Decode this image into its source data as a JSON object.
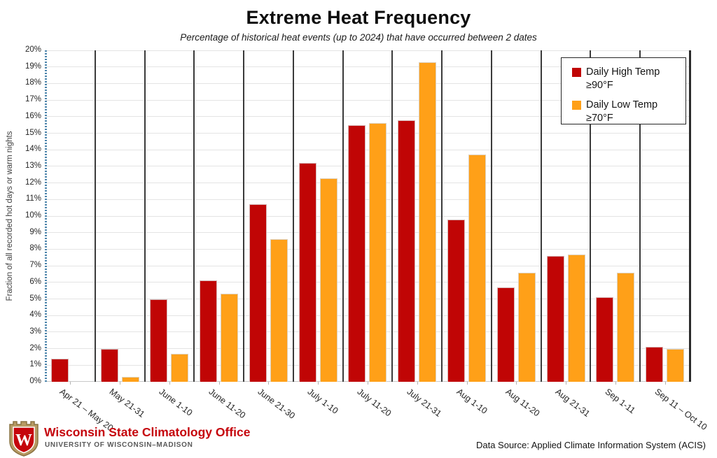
{
  "title": "Extreme Heat Frequency",
  "subtitle": "Percentage of historical heat events (up to 2024) that have occurred between 2 dates",
  "chart_data": {
    "type": "bar",
    "categories": [
      "Apr 21 – May 20",
      "May 21-31",
      "June 1-10",
      "June 11-20",
      "June 21-30",
      "July 1-10",
      "July 11-20",
      "July 21-31",
      "Aug 1-10",
      "Aug 11-20",
      "Aug 21-31",
      "Sep 1-11",
      "Sep 11 – Oct 10"
    ],
    "series": [
      {
        "name": "Daily High Temp ≥90°F",
        "legend_label": "Daily High Temp",
        "legend_sublabel": "≥90°F",
        "color": "#C00505",
        "values": [
          1.4,
          2.0,
          5.0,
          6.1,
          10.7,
          13.2,
          15.5,
          15.8,
          9.8,
          5.7,
          7.6,
          5.1,
          2.1
        ]
      },
      {
        "name": "Daily Low Temp ≥70°F",
        "legend_label": "Daily Low Temp",
        "legend_sublabel": "≥70°F",
        "color": "#FFA018",
        "values": [
          0,
          0.3,
          1.7,
          5.3,
          8.6,
          12.3,
          15.6,
          19.3,
          13.7,
          6.6,
          7.7,
          6.6,
          2.0
        ]
      }
    ],
    "xlabel": "",
    "ylabel": "Fraction of all recorded hot days or warm nights",
    "ylim": [
      0,
      20
    ],
    "ytick_step": 1,
    "ytick_suffix": "%",
    "grid": true,
    "group_separators": true,
    "legend_position": "top-right"
  },
  "footer": {
    "org_name": "Wisconsin State Climatology Office",
    "org_subtitle": "UNIVERSITY OF WISCONSIN–MADISON",
    "logo_letter": "W",
    "data_source": "Data Source: Applied Climate Information System (ACIS)"
  },
  "colors": {
    "high_temp_red": "#C00505",
    "low_temp_orange": "#FFA018",
    "brand_red": "#c5050c",
    "crest_gold": "#b79a63",
    "separator_gray": "#3b3b3b",
    "gridline_gray": "#e4e4e4",
    "axis_blue": "#4e86ac"
  }
}
